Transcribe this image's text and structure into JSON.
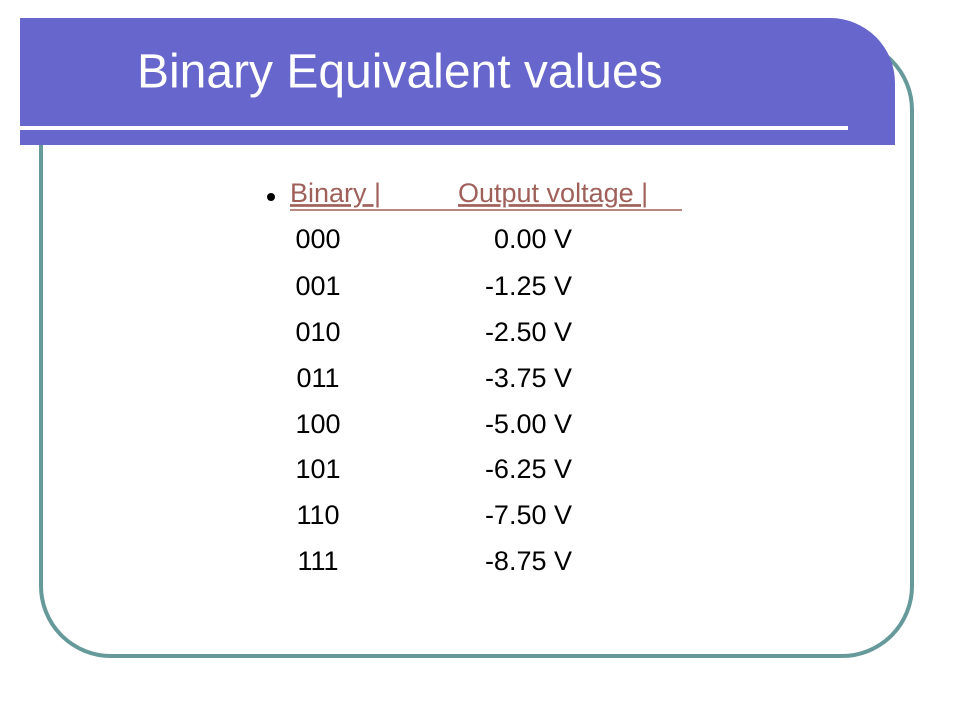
{
  "title": "Binary Equivalent values",
  "table": {
    "header": [
      "Binary |",
      "Output voltage |"
    ],
    "rows": [
      [
        "000",
        "0.00 V"
      ],
      [
        "001",
        "-1.25 V"
      ],
      [
        "010",
        "-2.50 V"
      ],
      [
        "011",
        "-3.75 V"
      ],
      [
        "100",
        "-5.00 V"
      ],
      [
        "101",
        "-6.25 V"
      ],
      [
        "110",
        "-7.50 V"
      ],
      [
        "111",
        "-8.75 V"
      ]
    ]
  }
}
